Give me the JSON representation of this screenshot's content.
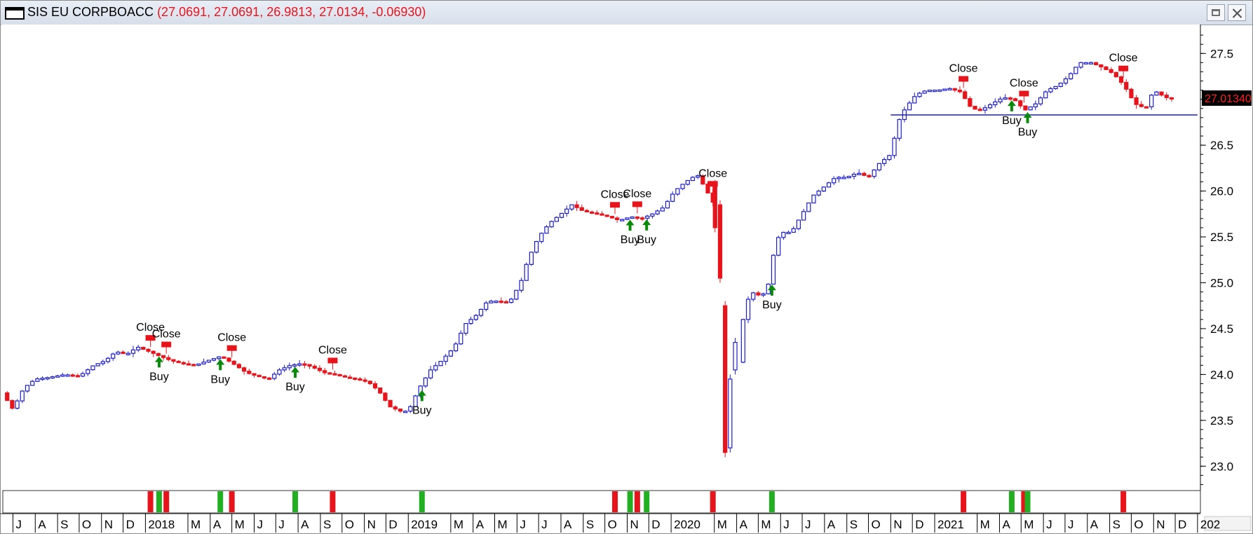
{
  "window": {
    "symbol": "SIS EU CORPBOACC",
    "ohlc": "(27.0691, 27.0691, 26.9813, 27.0134, -0.06930)"
  },
  "colors": {
    "up": "#1c1ccc",
    "down": "#e8141c",
    "buy_arrow": "#0a8a0a",
    "signal_buy": "#22b022",
    "signal_sell": "#e8141c",
    "support_line": "#1c1ccc",
    "price_tag_bg": "#cc0000"
  },
  "chart_data": {
    "type": "candlestick",
    "title": "",
    "y_axis": {
      "ticks": [
        "23.0",
        "23.5",
        "24.0",
        "24.5",
        "25.0",
        "25.5",
        "26.0",
        "26.5",
        "27.0",
        "27.5"
      ],
      "range": [
        22.75,
        27.8
      ],
      "position": "right"
    },
    "x_axis": {
      "range": [
        "2017-06-15",
        "2022-01-05"
      ],
      "labels": [
        {
          "t": "J",
          "d": "2017-07-01"
        },
        {
          "t": "A",
          "d": "2017-08-01"
        },
        {
          "t": "S",
          "d": "2017-09-01"
        },
        {
          "t": "O",
          "d": "2017-10-01"
        },
        {
          "t": "N",
          "d": "2017-11-01"
        },
        {
          "t": "D",
          "d": "2017-12-01"
        },
        {
          "t": "2018",
          "d": "2018-01-01"
        },
        {
          "t": "M",
          "d": "2018-03-01"
        },
        {
          "t": "A",
          "d": "2018-04-01"
        },
        {
          "t": "M",
          "d": "2018-05-01"
        },
        {
          "t": "J",
          "d": "2018-06-01"
        },
        {
          "t": "J",
          "d": "2018-07-01"
        },
        {
          "t": "A",
          "d": "2018-08-01"
        },
        {
          "t": "S",
          "d": "2018-09-01"
        },
        {
          "t": "O",
          "d": "2018-10-01"
        },
        {
          "t": "N",
          "d": "2018-11-01"
        },
        {
          "t": "D",
          "d": "2018-12-01"
        },
        {
          "t": "2019",
          "d": "2019-01-01"
        },
        {
          "t": "M",
          "d": "2019-03-01"
        },
        {
          "t": "A",
          "d": "2019-04-01"
        },
        {
          "t": "M",
          "d": "2019-05-01"
        },
        {
          "t": "J",
          "d": "2019-06-01"
        },
        {
          "t": "J",
          "d": "2019-07-01"
        },
        {
          "t": "A",
          "d": "2019-08-01"
        },
        {
          "t": "S",
          "d": "2019-09-01"
        },
        {
          "t": "O",
          "d": "2019-10-01"
        },
        {
          "t": "N",
          "d": "2019-11-01"
        },
        {
          "t": "D",
          "d": "2019-12-01"
        },
        {
          "t": "2020",
          "d": "2020-01-01"
        },
        {
          "t": "M",
          "d": "2020-03-01"
        },
        {
          "t": "A",
          "d": "2020-04-01"
        },
        {
          "t": "M",
          "d": "2020-05-01"
        },
        {
          "t": "J",
          "d": "2020-06-01"
        },
        {
          "t": "J",
          "d": "2020-07-01"
        },
        {
          "t": "A",
          "d": "2020-08-01"
        },
        {
          "t": "S",
          "d": "2020-09-01"
        },
        {
          "t": "O",
          "d": "2020-10-01"
        },
        {
          "t": "N",
          "d": "2020-11-01"
        },
        {
          "t": "D",
          "d": "2020-12-01"
        },
        {
          "t": "2021",
          "d": "2021-01-01"
        },
        {
          "t": "M",
          "d": "2021-03-01"
        },
        {
          "t": "A",
          "d": "2021-04-01"
        },
        {
          "t": "M",
          "d": "2021-05-01"
        },
        {
          "t": "J",
          "d": "2021-06-01"
        },
        {
          "t": "J",
          "d": "2021-07-01"
        },
        {
          "t": "A",
          "d": "2021-08-01"
        },
        {
          "t": "S",
          "d": "2021-09-01"
        },
        {
          "t": "O",
          "d": "2021-10-01"
        },
        {
          "t": "N",
          "d": "2021-11-01"
        },
        {
          "t": "D",
          "d": "2021-12-01"
        },
        {
          "t": "202",
          "d": "2022-01-01"
        }
      ]
    },
    "price_path": [
      [
        "2017-06-20",
        23.8
      ],
      [
        "2017-07-05",
        23.62
      ],
      [
        "2017-07-20",
        23.85
      ],
      [
        "2017-08-05",
        23.95
      ],
      [
        "2017-08-25",
        23.97
      ],
      [
        "2017-09-15",
        24.0
      ],
      [
        "2017-10-05",
        23.98
      ],
      [
        "2017-10-25",
        24.1
      ],
      [
        "2017-11-10",
        24.15
      ],
      [
        "2017-11-25",
        24.25
      ],
      [
        "2017-12-10",
        24.22
      ],
      [
        "2017-12-25",
        24.3
      ],
      [
        "2018-01-10",
        24.25
      ],
      [
        "2018-01-25",
        24.2
      ],
      [
        "2018-02-10",
        24.15
      ],
      [
        "2018-02-25",
        24.12
      ],
      [
        "2018-03-15",
        24.1
      ],
      [
        "2018-04-01",
        24.15
      ],
      [
        "2018-04-20",
        24.2
      ],
      [
        "2018-05-10",
        24.1
      ],
      [
        "2018-05-25",
        24.02
      ],
      [
        "2018-06-10",
        23.98
      ],
      [
        "2018-06-25",
        23.95
      ],
      [
        "2018-07-10",
        24.05
      ],
      [
        "2018-07-25",
        24.1
      ],
      [
        "2018-08-10",
        24.12
      ],
      [
        "2018-08-25",
        24.08
      ],
      [
        "2018-09-10",
        24.02
      ],
      [
        "2018-09-25",
        24.0
      ],
      [
        "2018-10-10",
        23.97
      ],
      [
        "2018-10-25",
        23.95
      ],
      [
        "2018-11-10",
        23.92
      ],
      [
        "2018-11-25",
        23.82
      ],
      [
        "2018-12-10",
        23.65
      ],
      [
        "2018-12-25",
        23.6
      ],
      [
        "2019-01-05",
        23.6
      ],
      [
        "2019-01-20",
        23.85
      ],
      [
        "2019-02-05",
        24.05
      ],
      [
        "2019-02-20",
        24.15
      ],
      [
        "2019-03-10",
        24.3
      ],
      [
        "2019-03-25",
        24.55
      ],
      [
        "2019-04-10",
        24.65
      ],
      [
        "2019-04-25",
        24.8
      ],
      [
        "2019-05-10",
        24.8
      ],
      [
        "2019-05-25",
        24.78
      ],
      [
        "2019-06-10",
        25.0
      ],
      [
        "2019-06-20",
        25.25
      ],
      [
        "2019-07-05",
        25.5
      ],
      [
        "2019-07-20",
        25.65
      ],
      [
        "2019-08-05",
        25.75
      ],
      [
        "2019-08-20",
        25.85
      ],
      [
        "2019-09-05",
        25.78
      ],
      [
        "2019-09-25",
        25.75
      ],
      [
        "2019-10-10",
        25.72
      ],
      [
        "2019-10-25",
        25.68
      ],
      [
        "2019-11-10",
        25.72
      ],
      [
        "2019-11-25",
        25.7
      ],
      [
        "2019-12-10",
        25.75
      ],
      [
        "2019-12-25",
        25.82
      ],
      [
        "2020-01-10",
        26.0
      ],
      [
        "2020-01-25",
        26.1
      ],
      [
        "2020-02-10",
        26.18
      ],
      [
        "2020-02-20",
        26.05
      ],
      [
        "2020-03-05",
        25.85
      ],
      [
        "2020-03-10",
        25.1
      ],
      [
        "2020-03-15",
        24.6
      ],
      [
        "2020-03-19",
        23.2
      ],
      [
        "2020-03-25",
        23.25
      ],
      [
        "2020-04-01",
        24.0
      ],
      [
        "2020-04-10",
        24.2
      ],
      [
        "2020-04-15",
        24.7
      ],
      [
        "2020-04-25",
        24.9
      ],
      [
        "2020-05-10",
        24.85
      ],
      [
        "2020-05-20",
        25.0
      ],
      [
        "2020-05-28",
        25.4
      ],
      [
        "2020-06-05",
        25.55
      ],
      [
        "2020-06-20",
        25.55
      ],
      [
        "2020-07-05",
        25.75
      ],
      [
        "2020-07-20",
        25.95
      ],
      [
        "2020-08-05",
        26.05
      ],
      [
        "2020-08-20",
        26.15
      ],
      [
        "2020-09-05",
        26.15
      ],
      [
        "2020-09-20",
        26.2
      ],
      [
        "2020-10-05",
        26.15
      ],
      [
        "2020-10-20",
        26.3
      ],
      [
        "2020-11-05",
        26.4
      ],
      [
        "2020-11-15",
        26.75
      ],
      [
        "2020-11-25",
        26.9
      ],
      [
        "2020-12-10",
        27.05
      ],
      [
        "2020-12-25",
        27.1
      ],
      [
        "2021-01-10",
        27.1
      ],
      [
        "2021-01-25",
        27.12
      ],
      [
        "2021-02-10",
        27.08
      ],
      [
        "2021-02-25",
        26.9
      ],
      [
        "2021-03-10",
        26.88
      ],
      [
        "2021-03-25",
        26.95
      ],
      [
        "2021-04-10",
        27.02
      ],
      [
        "2021-04-25",
        27.0
      ],
      [
        "2021-05-10",
        26.88
      ],
      [
        "2021-05-25",
        26.95
      ],
      [
        "2021-06-10",
        27.1
      ],
      [
        "2021-06-25",
        27.15
      ],
      [
        "2021-07-10",
        27.25
      ],
      [
        "2021-07-25",
        27.4
      ],
      [
        "2021-08-10",
        27.4
      ],
      [
        "2021-08-25",
        27.35
      ],
      [
        "2021-09-10",
        27.28
      ],
      [
        "2021-09-25",
        27.15
      ],
      [
        "2021-10-10",
        26.95
      ],
      [
        "2021-10-25",
        26.9
      ],
      [
        "2021-11-05",
        27.1
      ],
      [
        "2021-11-15",
        27.05
      ],
      [
        "2021-11-25",
        27.01
      ]
    ],
    "crash_bars": [
      {
        "d": "2020-03-02",
        "o": 26.05,
        "c": 25.6,
        "h": 26.12,
        "l": 25.55,
        "dir": "down"
      },
      {
        "d": "2020-03-09",
        "o": 25.85,
        "c": 25.05,
        "h": 25.9,
        "l": 25.0,
        "dir": "down"
      },
      {
        "d": "2020-03-16",
        "o": 24.75,
        "c": 23.15,
        "h": 24.8,
        "l": 23.1,
        "dir": "down"
      },
      {
        "d": "2020-03-23",
        "o": 23.2,
        "c": 23.95,
        "h": 24.0,
        "l": 23.15,
        "dir": "up"
      },
      {
        "d": "2020-03-30",
        "o": 24.05,
        "c": 24.35,
        "h": 24.4,
        "l": 24.0,
        "dir": "up"
      }
    ],
    "support_line": {
      "level": 26.83,
      "from": "2020-11-01",
      "to": "2022-01-01"
    },
    "last_price": "27.01340",
    "buy_labels": [
      {
        "d": "2018-01-20",
        "text": "Buy"
      },
      {
        "d": "2018-04-15",
        "text": "Buy"
      },
      {
        "d": "2018-07-28",
        "text": "Buy"
      },
      {
        "d": "2019-01-20",
        "text": "Buy"
      },
      {
        "d": "2019-11-05",
        "text": "Buy"
      },
      {
        "d": "2019-11-28",
        "text": "Buy"
      },
      {
        "d": "2020-05-20",
        "text": "Buy"
      },
      {
        "d": "2021-04-18",
        "text": "Buy"
      },
      {
        "d": "2021-05-10",
        "text": "Buy"
      }
    ],
    "close_labels": [
      {
        "d": "2018-01-08",
        "text": "Close"
      },
      {
        "d": "2018-01-30",
        "text": "Close"
      },
      {
        "d": "2018-05-01",
        "text": "Close"
      },
      {
        "d": "2018-09-18",
        "text": "Close"
      },
      {
        "d": "2019-10-15",
        "text": "Close"
      },
      {
        "d": "2019-11-15",
        "text": "Close"
      },
      {
        "d": "2020-02-28",
        "text": "Close"
      },
      {
        "d": "2021-02-10",
        "text": "Close"
      },
      {
        "d": "2021-05-05",
        "text": "Close"
      },
      {
        "d": "2021-09-20",
        "text": "Close"
      }
    ],
    "signal_strip": [
      {
        "d": "2018-01-08",
        "c": "sell"
      },
      {
        "d": "2018-01-20",
        "c": "buy"
      },
      {
        "d": "2018-01-30",
        "c": "sell"
      },
      {
        "d": "2018-04-15",
        "c": "buy"
      },
      {
        "d": "2018-05-01",
        "c": "sell"
      },
      {
        "d": "2018-07-28",
        "c": "buy"
      },
      {
        "d": "2018-09-18",
        "c": "sell"
      },
      {
        "d": "2019-01-20",
        "c": "buy"
      },
      {
        "d": "2019-10-15",
        "c": "sell"
      },
      {
        "d": "2019-11-05",
        "c": "buy"
      },
      {
        "d": "2019-11-15",
        "c": "sell"
      },
      {
        "d": "2019-11-28",
        "c": "buy"
      },
      {
        "d": "2020-02-28",
        "c": "sell"
      },
      {
        "d": "2020-05-20",
        "c": "buy"
      },
      {
        "d": "2021-02-10",
        "c": "sell"
      },
      {
        "d": "2021-04-18",
        "c": "buy"
      },
      {
        "d": "2021-05-05",
        "c": "sell"
      },
      {
        "d": "2021-05-10",
        "c": "buy"
      },
      {
        "d": "2021-09-20",
        "c": "sell"
      }
    ]
  }
}
